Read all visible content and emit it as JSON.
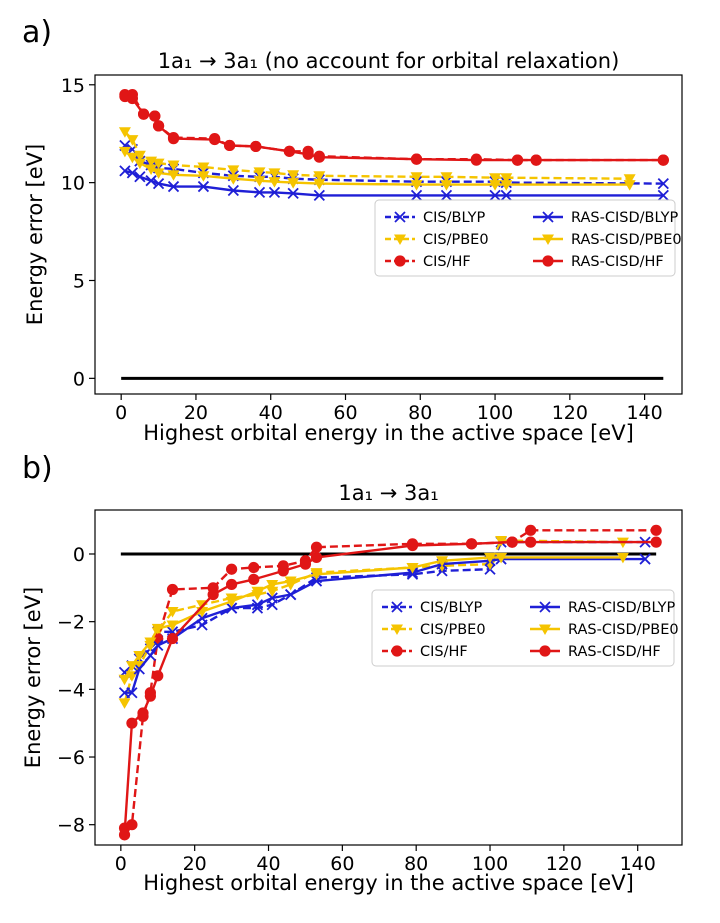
{
  "chart_data": [
    {
      "type": "line",
      "panel_label": "a)",
      "title": "1a₁ → 3a₁ (no account for orbital relaxation)",
      "xlabel": "Highest orbital energy in the active space [eV]",
      "ylabel": "Energy error [eV]",
      "xlim": [
        -7,
        150
      ],
      "ylim": [
        -0.8,
        15.5
      ],
      "xticks": [
        0,
        20,
        40,
        60,
        80,
        100,
        120,
        140
      ],
      "yticks": [
        0,
        5,
        10,
        15
      ],
      "legend_position": "center-right",
      "reference_line": {
        "y": 0,
        "x": [
          0,
          145
        ],
        "color": "#000000"
      },
      "series": [
        {
          "name": "CIS/BLYP",
          "color": "#1f1fd6",
          "dash": true,
          "marker": "x",
          "x": [
            1,
            3,
            5,
            8,
            10,
            14,
            22,
            30,
            37,
            41,
            46,
            53,
            79,
            87,
            100,
            103,
            145
          ],
          "y": [
            11.9,
            11.7,
            11.1,
            10.9,
            10.75,
            10.7,
            10.5,
            10.35,
            10.3,
            10.3,
            10.2,
            10.15,
            10.05,
            10.05,
            10.05,
            10.0,
            9.95
          ]
        },
        {
          "name": "CIS/PBE0",
          "color": "#f5c400",
          "dash": true,
          "marker": "v",
          "x": [
            1,
            3,
            5,
            8,
            10,
            14,
            22,
            30,
            37,
            41,
            46,
            53,
            79,
            87,
            100,
            103,
            136
          ],
          "y": [
            12.6,
            12.2,
            11.4,
            11.1,
            11.0,
            10.9,
            10.8,
            10.65,
            10.55,
            10.5,
            10.4,
            10.35,
            10.3,
            10.3,
            10.25,
            10.25,
            10.2
          ]
        },
        {
          "name": "CIS/HF",
          "color": "#e01616",
          "dash": true,
          "marker": "o",
          "x": [
            1,
            3,
            6,
            9,
            10,
            14,
            25,
            29,
            36,
            45,
            50,
            53,
            79,
            95,
            106,
            111,
            145
          ],
          "y": [
            14.5,
            14.5,
            13.5,
            13.4,
            12.9,
            12.3,
            12.25,
            11.9,
            11.85,
            11.6,
            11.6,
            11.35,
            11.2,
            11.2,
            11.15,
            11.15,
            11.15
          ]
        },
        {
          "name": "RAS-CISD/BLYP",
          "color": "#1f1fd6",
          "dash": false,
          "marker": "x",
          "x": [
            1,
            3,
            5,
            8,
            10,
            14,
            22,
            30,
            37,
            41,
            46,
            53,
            79,
            87,
            100,
            103,
            145
          ],
          "y": [
            10.6,
            10.5,
            10.3,
            10.1,
            9.95,
            9.8,
            9.8,
            9.6,
            9.5,
            9.5,
            9.45,
            9.35,
            9.35,
            9.35,
            9.35,
            9.35,
            9.35
          ]
        },
        {
          "name": "RAS-CISD/PBE0",
          "color": "#f5c400",
          "dash": false,
          "marker": "v",
          "x": [
            1,
            3,
            5,
            8,
            10,
            14,
            22,
            30,
            37,
            41,
            46,
            53,
            79,
            87,
            100,
            103,
            136
          ],
          "y": [
            11.6,
            11.3,
            11.0,
            10.7,
            10.5,
            10.4,
            10.35,
            10.2,
            10.1,
            10.05,
            10.0,
            9.95,
            9.9,
            9.9,
            9.9,
            9.9,
            9.9
          ]
        },
        {
          "name": "RAS-CISD/HF",
          "color": "#e01616",
          "dash": false,
          "marker": "o",
          "x": [
            1,
            3,
            6,
            9,
            10,
            14,
            25,
            29,
            36,
            45,
            50,
            53,
            79,
            95,
            106,
            111,
            145
          ],
          "y": [
            14.4,
            14.3,
            13.5,
            13.4,
            12.9,
            12.25,
            12.2,
            11.9,
            11.85,
            11.6,
            11.45,
            11.3,
            11.2,
            11.15,
            11.15,
            11.15,
            11.15
          ]
        }
      ]
    },
    {
      "type": "line",
      "panel_label": "b)",
      "title": "1a₁ → 3a₁",
      "xlabel": "Highest orbital energy in the active space [eV]",
      "ylabel": "Energy error [eV]",
      "xlim": [
        -7,
        152
      ],
      "ylim": [
        -8.6,
        1.3
      ],
      "xticks": [
        0,
        20,
        40,
        60,
        80,
        100,
        120,
        140
      ],
      "yticks": [
        0,
        -2,
        -4,
        -6,
        -8
      ],
      "legend_position": "center-right",
      "reference_line": {
        "y": 0,
        "x": [
          0,
          145
        ],
        "color": "#000000"
      },
      "series": [
        {
          "name": "CIS/BLYP",
          "color": "#1f1fd6",
          "dash": true,
          "marker": "x",
          "x": [
            1,
            3,
            5,
            8,
            10,
            14,
            22,
            30,
            37,
            41,
            46,
            53,
            79,
            87,
            100,
            103,
            142
          ],
          "y": [
            -3.5,
            -3.3,
            -3.1,
            -2.8,
            -2.3,
            -2.3,
            -2.1,
            -1.6,
            -1.6,
            -1.5,
            -1.2,
            -0.7,
            -0.6,
            -0.5,
            -0.45,
            0.35,
            0.35
          ]
        },
        {
          "name": "CIS/PBE0",
          "color": "#f5c400",
          "dash": true,
          "marker": "v",
          "x": [
            1,
            3,
            5,
            8,
            10,
            14,
            22,
            30,
            37,
            41,
            46,
            53,
            79,
            87,
            100,
            103,
            136
          ],
          "y": [
            -4.4,
            -3.6,
            -3.3,
            -2.7,
            -2.3,
            -1.7,
            -1.5,
            -1.3,
            -1.2,
            -1.1,
            -0.9,
            -0.55,
            -0.4,
            -0.35,
            -0.3,
            0.4,
            0.35
          ]
        },
        {
          "name": "CIS/HF",
          "color": "#e01616",
          "dash": true,
          "marker": "o",
          "x": [
            1,
            3,
            6,
            8,
            10,
            14,
            25,
            30,
            36,
            44,
            50,
            53,
            79,
            95,
            106,
            111,
            145
          ],
          "y": [
            -8.1,
            -8.0,
            -4.8,
            -4.1,
            -2.5,
            -1.05,
            -1.0,
            -0.45,
            -0.4,
            -0.35,
            -0.2,
            0.2,
            0.3,
            0.3,
            0.35,
            0.7,
            0.7
          ]
        },
        {
          "name": "RAS-CISD/BLYP",
          "color": "#1f1fd6",
          "dash": false,
          "marker": "x",
          "x": [
            1,
            3,
            5,
            8,
            10,
            14,
            22,
            30,
            37,
            41,
            46,
            53,
            79,
            87,
            100,
            103,
            142
          ],
          "y": [
            -4.1,
            -4.1,
            -3.4,
            -3.0,
            -2.7,
            -2.5,
            -1.9,
            -1.6,
            -1.5,
            -1.3,
            -1.2,
            -0.8,
            -0.55,
            -0.3,
            -0.2,
            -0.15,
            -0.15
          ]
        },
        {
          "name": "RAS-CISD/PBE0",
          "color": "#f5c400",
          "dash": false,
          "marker": "v",
          "x": [
            1,
            3,
            5,
            8,
            10,
            14,
            22,
            30,
            37,
            41,
            46,
            53,
            79,
            87,
            100,
            103,
            136
          ],
          "y": [
            -3.7,
            -3.3,
            -3.0,
            -2.6,
            -2.2,
            -2.1,
            -1.7,
            -1.4,
            -1.1,
            -0.9,
            -0.8,
            -0.6,
            -0.4,
            -0.2,
            -0.1,
            -0.1,
            -0.1
          ]
        },
        {
          "name": "RAS-CISD/HF",
          "color": "#e01616",
          "dash": false,
          "marker": "o",
          "x": [
            1,
            3,
            6,
            8,
            10,
            14,
            25,
            30,
            36,
            44,
            50,
            53,
            79,
            95,
            106,
            111,
            145
          ],
          "y": [
            -8.3,
            -5.0,
            -4.7,
            -4.2,
            -3.6,
            -2.5,
            -1.2,
            -0.9,
            -0.75,
            -0.5,
            -0.3,
            -0.1,
            0.25,
            0.3,
            0.35,
            0.35,
            0.35
          ]
        }
      ]
    }
  ]
}
